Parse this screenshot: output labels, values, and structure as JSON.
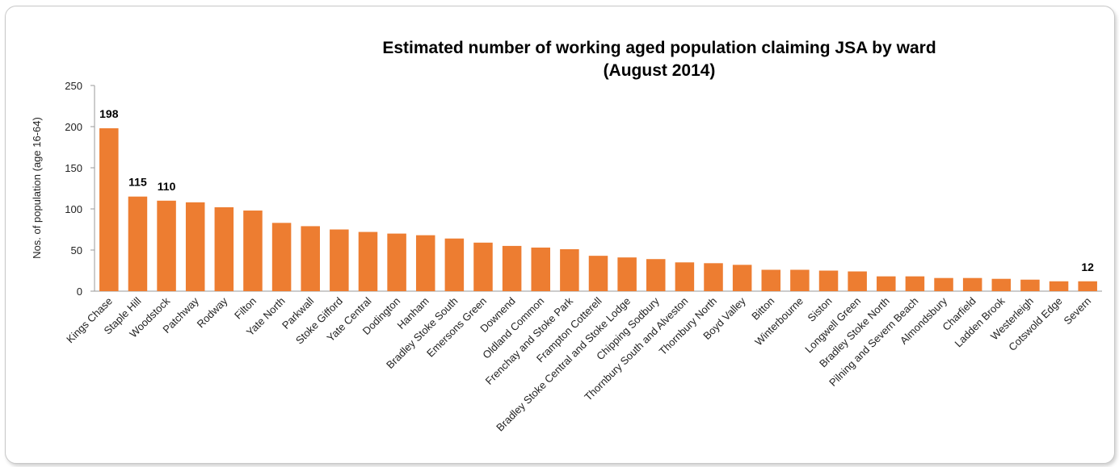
{
  "chart_data": {
    "type": "bar",
    "title_lines": [
      "Estimated number of working aged population claiming JSA by ward",
      "(August 2014)"
    ],
    "xlabel": "",
    "ylabel": "Nos. of population  (age 16-64)",
    "ylim": [
      0,
      250
    ],
    "yticks": [
      0,
      50,
      100,
      150,
      200,
      250
    ],
    "grid": false,
    "legend": "none",
    "bar_color": "#ED7D31",
    "categories": [
      "Kings Chase",
      "Staple Hill",
      "Woodstock",
      "Patchway",
      "Rodway",
      "Filton",
      "Yate North",
      "Parkwall",
      "Stoke Gifford",
      "Yate Central",
      "Dodington",
      "Hanham",
      "Bradley Stoke South",
      "Emersons Green",
      "Downend",
      "Oldland Common",
      "Frenchay and Stoke Park",
      "Frampton Cotterell",
      "Bradley Stoke Central and Stoke Lodge",
      "Chipping Sodbury",
      "Thornbury South and Alveston",
      "Thornbury North",
      "Boyd Valley",
      "Bitton",
      "Winterbourne",
      "Siston",
      "Longwell Green",
      "Bradley Stoke North",
      "Pilning and Severn Beach",
      "Almondsbury",
      "Charfield",
      "Ladden Brook",
      "Westerleigh",
      "Cotswold Edge",
      "Severn"
    ],
    "values": [
      198,
      115,
      110,
      108,
      102,
      98,
      83,
      79,
      75,
      72,
      70,
      68,
      64,
      59,
      55,
      53,
      51,
      43,
      41,
      39,
      35,
      34,
      32,
      26,
      26,
      25,
      24,
      18,
      18,
      16,
      16,
      15,
      14,
      12,
      12
    ],
    "data_labels": [
      {
        "category": "Kings Chase",
        "text": "198"
      },
      {
        "category": "Staple Hill",
        "text": "115"
      },
      {
        "category": "Woodstock",
        "text": "110"
      },
      {
        "category": "Severn",
        "text": "12"
      }
    ]
  }
}
